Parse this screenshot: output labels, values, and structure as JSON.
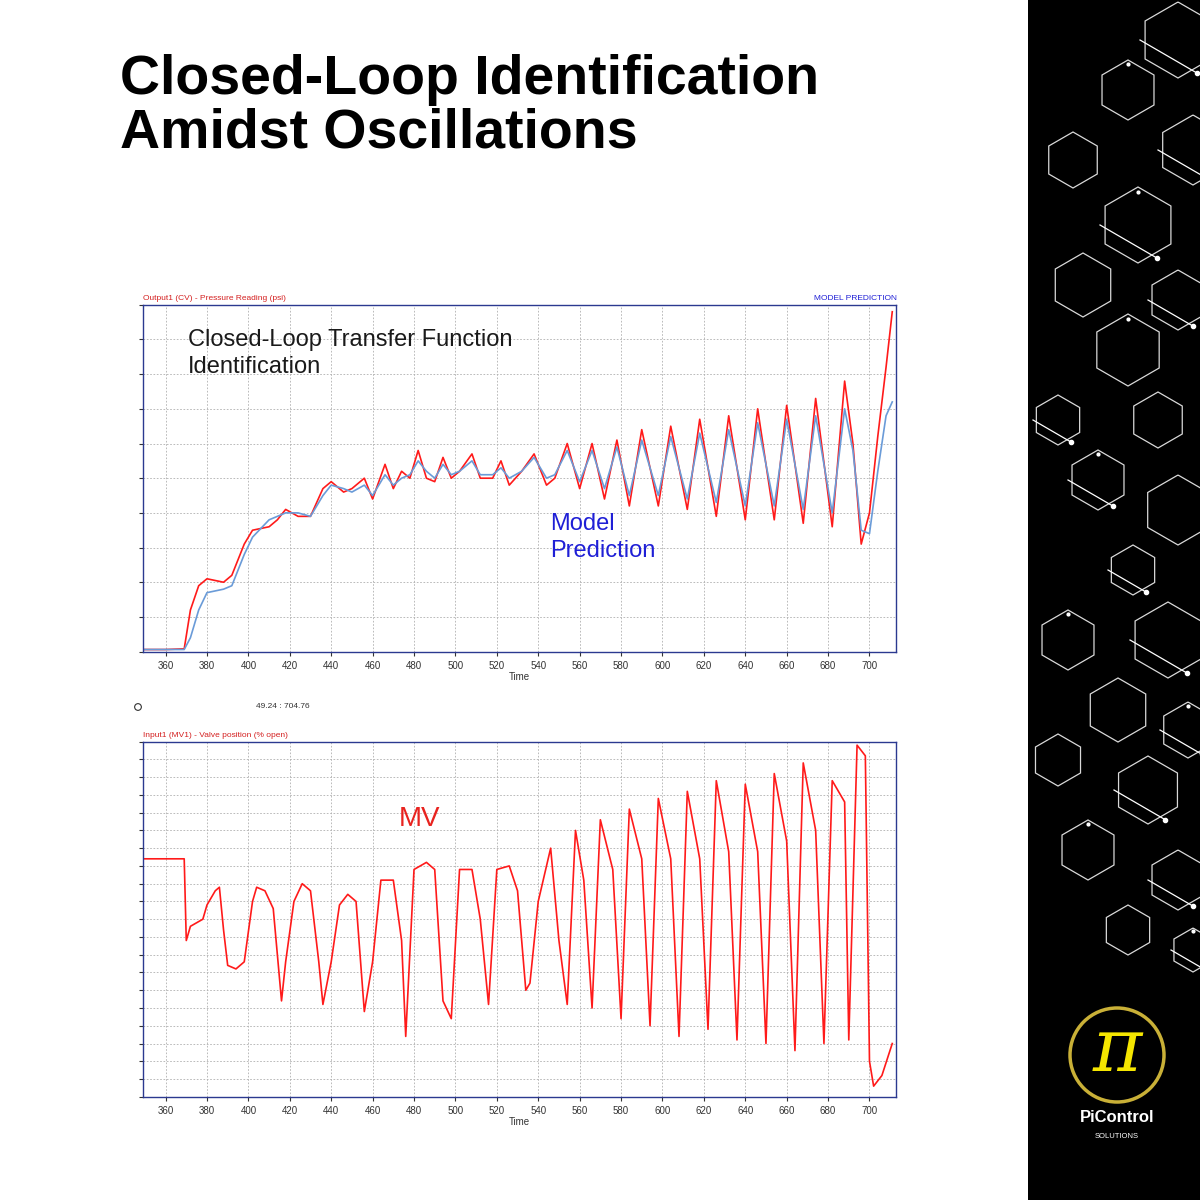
{
  "title": "Closed-Loop Identification\nAmidst Oscillations",
  "branding": {
    "logo": "π",
    "name": "PiControl",
    "tagline": "SOLUTIONS"
  },
  "chart_data": [
    {
      "type": "line",
      "header": "Output1 (CV) - Pressure Reading (psi)",
      "header_right": "MODEL PREDICTION",
      "annotations": [
        {
          "text": "Closed-Loop Transfer Function\nIdentification",
          "color": "#1a1a1a"
        },
        {
          "text": "Model\nPrediction",
          "color": "#1f1fd6"
        }
      ],
      "xlabel": "Time",
      "x": [
        349,
        360,
        369,
        372,
        376,
        380,
        388,
        392,
        398,
        402,
        410,
        414,
        418,
        424,
        430,
        436,
        440,
        446,
        450,
        456,
        460,
        466,
        470,
        474,
        478,
        482,
        486,
        490,
        494,
        498,
        502,
        508,
        512,
        518,
        522,
        526,
        532,
        538,
        544,
        548,
        554,
        560,
        566,
        572,
        578,
        584,
        590,
        598,
        604,
        612,
        618,
        626,
        632,
        640,
        646,
        654,
        660,
        668,
        674,
        682,
        688,
        692,
        696,
        700,
        704,
        708,
        711
      ],
      "series": [
        {
          "color": "#ff1a1a",
          "values": [
            0.6,
            0.6,
            0.8,
            12,
            19,
            21,
            20,
            22,
            31,
            35,
            36,
            38,
            41,
            39,
            39,
            47,
            49,
            46,
            47,
            50,
            44,
            54,
            47,
            52,
            50,
            58,
            50,
            49,
            56,
            50,
            52,
            57,
            50,
            50,
            55,
            48,
            52,
            57,
            48,
            50,
            60,
            47,
            60,
            44,
            61,
            42,
            64,
            42,
            65,
            41,
            67,
            39,
            68,
            38,
            70,
            38,
            71,
            37,
            73,
            36,
            78,
            60,
            31,
            40,
            62,
            82,
            98
          ]
        },
        {
          "color": "#6a9bd8",
          "values": [
            0.6,
            0.6,
            0.6,
            4,
            12,
            17,
            18,
            19,
            28,
            33,
            38,
            39,
            40,
            40,
            39,
            45,
            48,
            47,
            46,
            48,
            45,
            51,
            48,
            50,
            51,
            55,
            52,
            50,
            54,
            51,
            52,
            55,
            51,
            51,
            53,
            50,
            52,
            56,
            50,
            51,
            58,
            49,
            58,
            47,
            59,
            45,
            61,
            45,
            62,
            44,
            63,
            43,
            64,
            42,
            66,
            42,
            67,
            41,
            68,
            40,
            70,
            58,
            35,
            34,
            52,
            68,
            72
          ]
        }
      ],
      "xlim": [
        349,
        713
      ],
      "xticks": [
        360,
        380,
        400,
        420,
        440,
        460,
        480,
        500,
        520,
        540,
        560,
        580,
        600,
        620,
        640,
        660,
        680,
        700
      ],
      "ylim": [
        0,
        100
      ],
      "yticks": [
        0,
        10,
        20,
        30,
        40,
        50,
        60,
        70,
        80,
        90,
        100
      ],
      "grid": true,
      "tick_labels": "x"
    },
    {
      "type": "line",
      "header": "Input1 (MV1) - Valve position (% open)",
      "readout": "49.24 : 704.76",
      "annotations": [
        {
          "text": "MV",
          "color": "#e8231f"
        }
      ],
      "xlabel": "Time",
      "x": [
        349,
        369,
        370,
        372,
        378,
        380,
        384,
        386,
        388,
        390,
        394,
        398,
        402,
        404,
        408,
        412,
        416,
        418,
        422,
        426,
        430,
        434,
        436,
        440,
        444,
        448,
        452,
        456,
        460,
        464,
        470,
        474,
        476,
        480,
        486,
        490,
        494,
        498,
        502,
        508,
        512,
        516,
        520,
        526,
        530,
        534,
        536,
        540,
        546,
        550,
        554,
        558,
        562,
        566,
        570,
        576,
        580,
        584,
        590,
        594,
        598,
        604,
        608,
        612,
        618,
        622,
        626,
        632,
        636,
        640,
        646,
        650,
        654,
        660,
        664,
        668,
        674,
        678,
        682,
        688,
        690,
        694,
        698,
        700,
        702,
        706,
        711
      ],
      "series": [
        {
          "color": "#ff1a1a",
          "values": [
            67,
            67,
            44,
            48,
            50,
            54,
            58,
            59,
            47,
            37,
            36,
            38,
            55,
            59,
            58,
            53,
            27,
            38,
            55,
            60,
            58,
            38,
            26,
            38,
            54,
            57,
            55,
            24,
            38,
            61,
            61,
            44,
            17,
            64,
            66,
            64,
            27,
            22,
            64,
            64,
            50,
            26,
            64,
            65,
            58,
            30,
            32,
            55,
            70,
            44,
            26,
            75,
            61,
            25,
            78,
            64,
            22,
            81,
            67,
            20,
            84,
            67,
            17,
            86,
            67,
            19,
            89,
            69,
            16,
            88,
            69,
            15,
            91,
            72,
            13,
            94,
            75,
            15,
            89,
            83,
            16,
            99,
            96,
            10,
            3,
            6,
            15
          ]
        }
      ],
      "xlim": [
        349,
        713
      ],
      "xticks": [
        360,
        380,
        400,
        420,
        440,
        460,
        480,
        500,
        520,
        540,
        560,
        580,
        600,
        620,
        640,
        660,
        680,
        700
      ],
      "ylim": [
        0,
        100
      ],
      "yticks": [
        0,
        5,
        10,
        15,
        20,
        25,
        30,
        35,
        40,
        45,
        50,
        55,
        60,
        65,
        70,
        75,
        80,
        85,
        90,
        95,
        100
      ],
      "grid": true,
      "tick_labels": "x"
    }
  ]
}
